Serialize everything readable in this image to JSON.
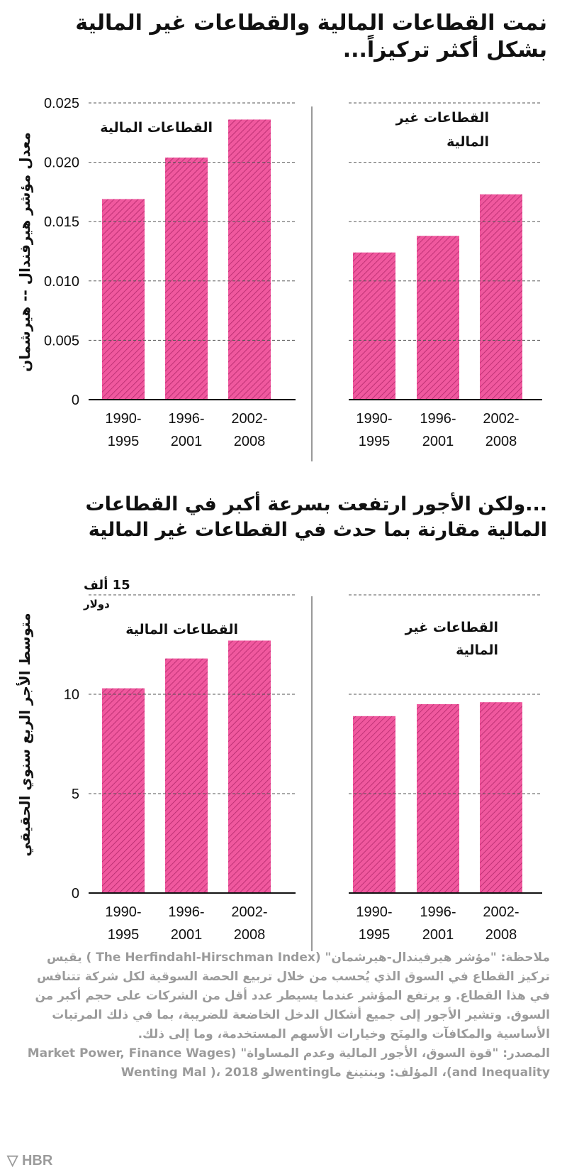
{
  "titles": {
    "top": "نمت القطاعات المالية والقطاعات غير المالية بشكل أكثر تركيزاً...",
    "bottom": "...ولكن الأجور ارتفعت بسرعة أكبر في القطاعات المالية مقارنة بما حدث في القطاعات غير المالية"
  },
  "colors": {
    "bar": "#f0589e",
    "hatch": "#b3286b",
    "grid": "#555555",
    "note": "#9b9b9b"
  },
  "chart_data": [
    {
      "type": "bar",
      "title": "نمت القطاعات المالية والقطاعات غير المالية بشكل أكثر تركيزاً...",
      "ylabel": "معدل مؤشر هيرفندال -- هيرشمان",
      "ylim": [
        0,
        0.025
      ],
      "yticks": [
        "0",
        "0.005",
        "0.010",
        "0.015",
        "0.020",
        "0.025"
      ],
      "ytick_values": [
        0,
        0.005,
        0.01,
        0.015,
        0.02,
        0.025
      ],
      "categories": [
        [
          "1990-",
          "1995"
        ],
        [
          "1996-",
          "2001"
        ],
        [
          "2002-",
          "2008"
        ]
      ],
      "grid": true,
      "panels": [
        {
          "label": [
            "القطاعات المالية"
          ],
          "values": [
            0.0169,
            0.0204,
            0.0236
          ]
        },
        {
          "label": [
            "القطاعات غير",
            "المالية"
          ],
          "values": [
            0.0124,
            0.0138,
            0.0173
          ]
        }
      ]
    },
    {
      "type": "bar",
      "title": "...ولكن الأجور ارتفعت بسرعة أكبر في القطاعات المالية مقارنة بما حدث في القطاعات غير المالية",
      "ylabel": "متوسط الأجر الربع  سنوي  الحقيقي",
      "ylim": [
        0,
        15
      ],
      "yticks": [
        "0",
        "5",
        "10"
      ],
      "ytick_values": [
        0,
        5,
        10
      ],
      "unit_label": [
        "15 ألف",
        "دولار"
      ],
      "categories": [
        [
          "1990-",
          "1995"
        ],
        [
          "1996-",
          "2001"
        ],
        [
          "2002-",
          "2008"
        ]
      ],
      "grid": true,
      "panels": [
        {
          "label": [
            "القطاعات المالية"
          ],
          "values": [
            10.3,
            11.8,
            12.7
          ]
        },
        {
          "label": [
            "القطاعات غير",
            "المالية"
          ],
          "values": [
            8.9,
            9.5,
            9.6
          ]
        }
      ]
    }
  ],
  "notes": {
    "note": "ملاحظة:  \"مؤشر هيرفيندال-هيرشمان\" (The Herfindahl-Hirschman Index ) يقيس تركيز القطاع في السوق الذي يُحسب من خلال تربيع  الحصة السوقية لكل شركة تتنافس في هذا القطاع. و يرتفع المؤشر عندما يسيطر عدد أقل من الشركات على حجم أكبر من السوق. وتشير الأجور إلى جميع أشكال الدخل الخاضعة للضريبة، بما في ذلك المرتبات الأساسية والمكافآت والمِنَح وخيارات الأسهم المستخدمة، وما إلى ذلك.",
    "source": "المصدر: \"قوة السوق، الأجور المالية وعدم المساواة\" (Market Power, Finance Wages and Inequality)، المؤلف: وينتينغ ماwentingلو Wenting Mal )، 2018",
    "logo": "HBR"
  }
}
